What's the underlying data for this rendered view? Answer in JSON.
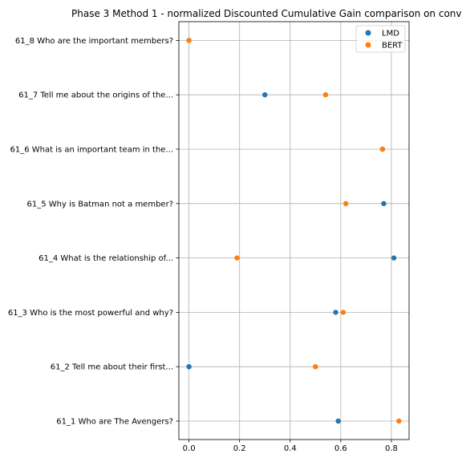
{
  "chart_data": {
    "type": "scatter",
    "title": "Phase 3 Method 1 - normalized Discounted Cumulative Gain comparison on conv",
    "xlabel": "",
    "ylabel": "",
    "xlim": [
      -0.04,
      0.87
    ],
    "xticks": [
      0.0,
      0.2,
      0.4,
      0.6,
      0.8
    ],
    "xtick_labels": [
      "0.0",
      "0.2",
      "0.4",
      "0.6",
      "0.8"
    ],
    "grid": true,
    "legend_position": "top-right",
    "categories": [
      "61_1 Who are The Avengers?",
      "61_2 Tell me about their first...",
      "61_3 Who is the most powerful and why?",
      "61_4 What is the relationship of...",
      "61_5 Why is Batman not a member?",
      "61_6 What is an important team in the...",
      "61_7 Tell me about the origins of the...",
      "61_8 Who are the important members?"
    ],
    "series": [
      {
        "name": "LMD",
        "color": "#1f77b4",
        "values": [
          0.59,
          0.0,
          0.58,
          0.81,
          0.77,
          0.765,
          0.3,
          0.0
        ]
      },
      {
        "name": "BERT",
        "color": "#ff7f0e",
        "values": [
          0.83,
          0.5,
          0.61,
          0.19,
          0.62,
          0.765,
          0.54,
          0.0
        ]
      }
    ]
  }
}
